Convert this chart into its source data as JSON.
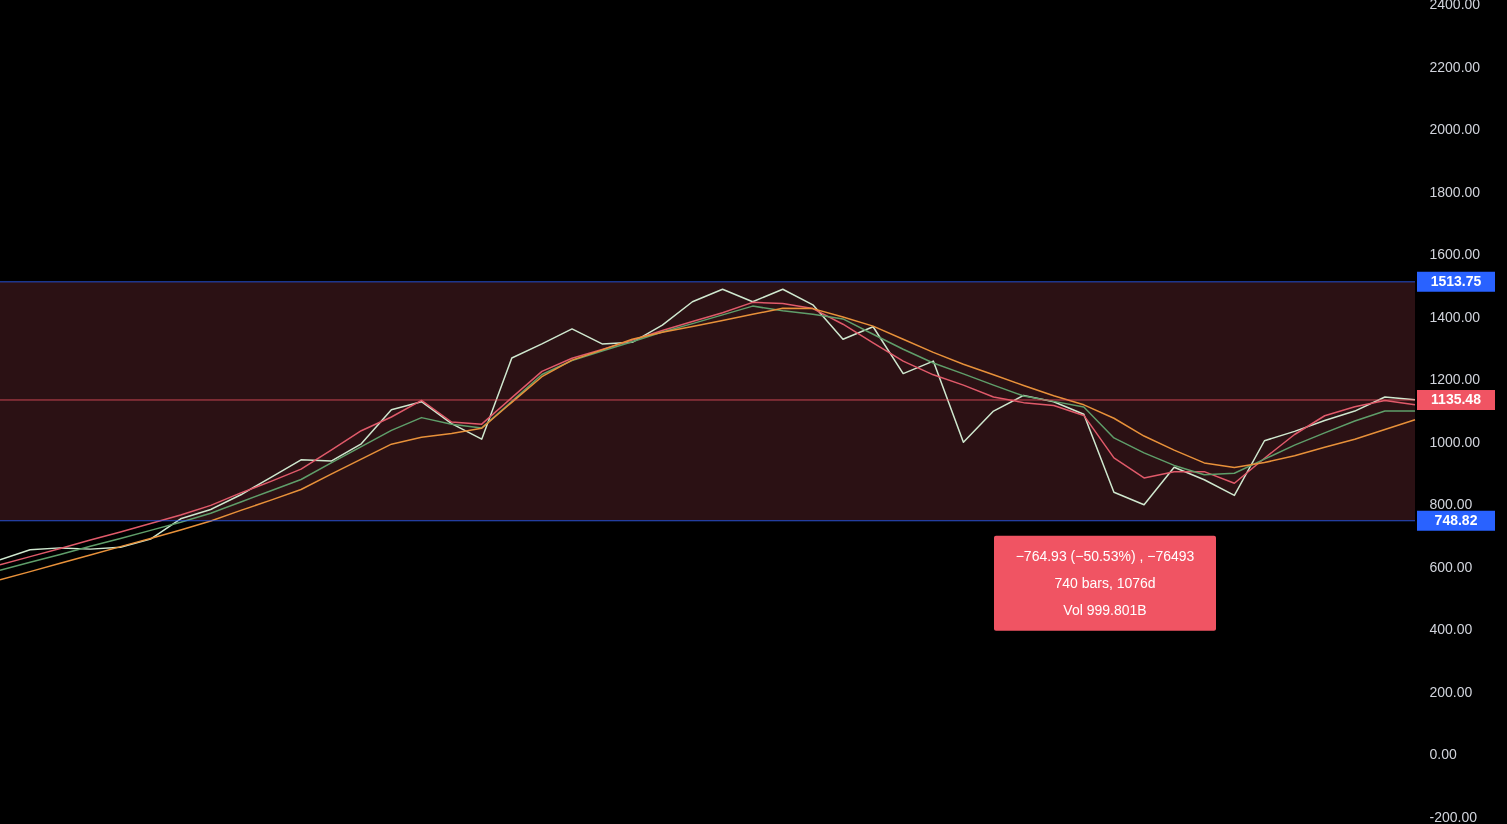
{
  "chart_data": {
    "type": "line",
    "ylim": [
      -222,
      2416
    ],
    "categories": [
      null,
      null,
      null,
      null,
      null,
      null,
      null,
      null,
      null,
      null,
      null,
      null,
      null,
      null,
      null,
      null,
      null,
      null,
      null,
      null,
      null,
      null,
      null,
      null,
      null,
      null,
      null,
      null,
      null,
      null,
      null,
      null,
      null,
      null,
      null,
      null,
      null,
      null,
      null,
      null,
      null,
      null,
      null,
      null,
      null,
      null,
      null,
      null
    ],
    "yticks": [
      {
        "value": -200,
        "label": "-200.00"
      },
      {
        "value": 0,
        "label": "0.00"
      },
      {
        "value": 200,
        "label": "200.00"
      },
      {
        "value": 400,
        "label": "400.00"
      },
      {
        "value": 600,
        "label": "600.00"
      },
      {
        "value": 800,
        "label": "800.00"
      },
      {
        "value": 1000,
        "label": "1000.00"
      },
      {
        "value": 1200,
        "label": "1200.00"
      },
      {
        "value": 1400,
        "label": "1400.00"
      },
      {
        "value": 1600,
        "label": "1600.00"
      },
      {
        "value": 1800,
        "label": "1800.00"
      },
      {
        "value": 2000,
        "label": "2000.00"
      },
      {
        "value": 2200,
        "label": "2200.00"
      },
      {
        "value": 2400,
        "label": "2400.00"
      }
    ],
    "tick_labels": "y",
    "grid": false,
    "line_style": "solid",
    "marker": "none",
    "series": [
      {
        "color": "#cfe8cf",
        "values": [
          624,
          656,
          662,
          658,
          664,
          690,
          755,
          785,
          832,
          888,
          944,
          940,
          995,
          1104,
          1130,
          1060,
          1010,
          1270,
          1315,
          1363,
          1315,
          1320,
          1375,
          1450,
          1490,
          1450,
          1490,
          1440,
          1330,
          1370,
          1220,
          1260,
          1000,
          1100,
          1150,
          1130,
          1090,
          840,
          800,
          920,
          880,
          830,
          1005,
          1035,
          1070,
          1100,
          1145,
          1136
        ]
      },
      {
        "color": "#e05a6a",
        "values": [
          608,
          634,
          660,
          687,
          713,
          740,
          767,
          798,
          838,
          875,
          914,
          975,
          1037,
          1081,
          1134,
          1065,
          1058,
          1143,
          1227,
          1269,
          1297,
          1327,
          1358,
          1387,
          1415,
          1448,
          1444,
          1428,
          1378,
          1318,
          1260,
          1216,
          1183,
          1145,
          1127,
          1118,
          1086,
          950,
          886,
          906,
          906,
          869,
          949,
          1025,
          1085,
          1114,
          1134,
          1120
        ]
      },
      {
        "color": "#5f9e6a",
        "values": [
          590,
          616,
          641,
          667,
          692,
          718,
          744,
          773,
          809,
          845,
          881,
          934,
          986,
          1038,
          1079,
          1058,
          1046,
          1131,
          1217,
          1262,
          1292,
          1322,
          1353,
          1380,
          1408,
          1436,
          1421,
          1410,
          1395,
          1346,
          1298,
          1254,
          1219,
          1183,
          1148,
          1131,
          1113,
          1014,
          966,
          926,
          896,
          901,
          946,
          991,
          1030,
          1068,
          1100,
          1100
        ]
      },
      {
        "color": "#e8913a",
        "values": [
          560,
          586,
          613,
          639,
          666,
          692,
          719,
          748,
          782,
          815,
          849,
          898,
          946,
          994,
          1016,
          1028,
          1045,
          1128,
          1210,
          1263,
          1296,
          1330,
          1352,
          1371,
          1390,
          1410,
          1429,
          1428,
          1401,
          1372,
          1330,
          1288,
          1250,
          1216,
          1182,
          1149,
          1120,
          1077,
          1020,
          975,
          934,
          919,
          935,
          957,
          984,
          1010,
          1041,
          1072
        ]
      }
    ],
    "bands": [
      {
        "axis": "y",
        "from": 748.82,
        "to": 1513.75,
        "color": "#331418"
      }
    ],
    "ref_lines": [
      {
        "axis": "y",
        "value": 1135.48,
        "label": "1135.48",
        "color": "#f05463"
      },
      {
        "axis": "y",
        "value": 1513.75,
        "label": "1513.75",
        "color": "#2962ff"
      },
      {
        "axis": "y",
        "value": 748.82,
        "label": "748.82",
        "color": "#2962ff"
      }
    ],
    "annotations": [
      "−764.93 (−50.53%) , −76493",
      "740 bars, 1076d",
      "Vol 999.801B"
    ]
  }
}
